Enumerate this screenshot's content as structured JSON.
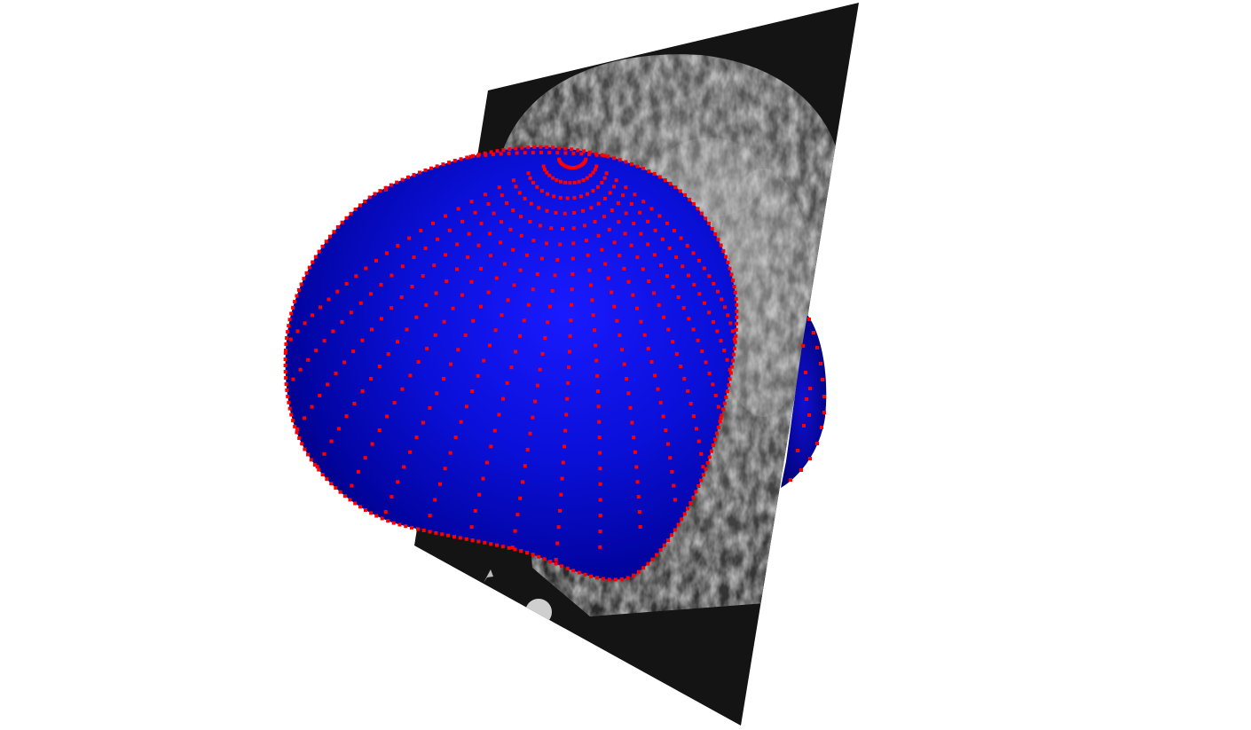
{
  "scene": {
    "background_color": "#ffffff",
    "slice_color": "#141414",
    "ultrasound_tones": [
      "#1e1e1e",
      "#4a4a4a",
      "#8a8a8a",
      "#d8d8d8"
    ],
    "surface_color": "#0a10d8",
    "surface_shadow_color": "#00006a",
    "marker_color": "#ff0000",
    "probe_color": "#cfcfcf",
    "rendered_objects": [
      "ultrasound-slice-plane",
      "segmented-surface-mesh",
      "contour-point-markers",
      "probe-marker"
    ]
  }
}
